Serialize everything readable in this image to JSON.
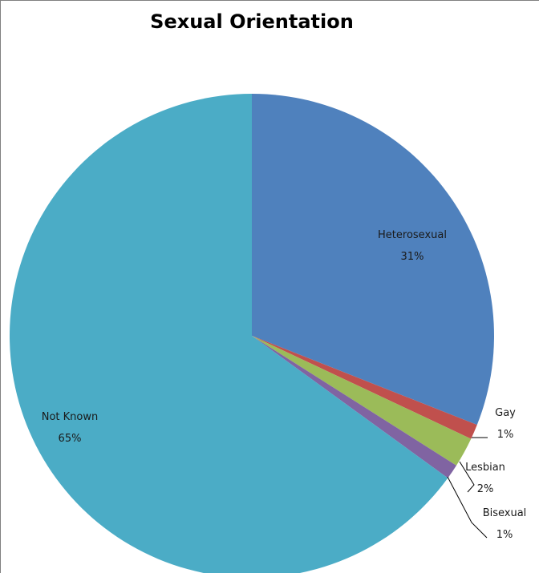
{
  "chart_data": {
    "type": "pie",
    "title": "Sexual Orientation",
    "slices": [
      {
        "label": "Heterosexual",
        "value": 31,
        "value_label": "31%",
        "color": "#4f81bd"
      },
      {
        "label": "Gay",
        "value": 1,
        "value_label": "1%",
        "color": "#c0504d"
      },
      {
        "label": "Lesbian",
        "value": 2,
        "value_label": "2%",
        "color": "#9bbb59"
      },
      {
        "label": "Bisexual",
        "value": 1,
        "value_label": "1%",
        "color": "#8064a2"
      },
      {
        "label": "Not Known",
        "value": 65,
        "value_label": "65%",
        "color": "#4bacc6"
      }
    ],
    "start_angle": "12 o'clock",
    "direction": "clockwise",
    "legend": "none"
  }
}
